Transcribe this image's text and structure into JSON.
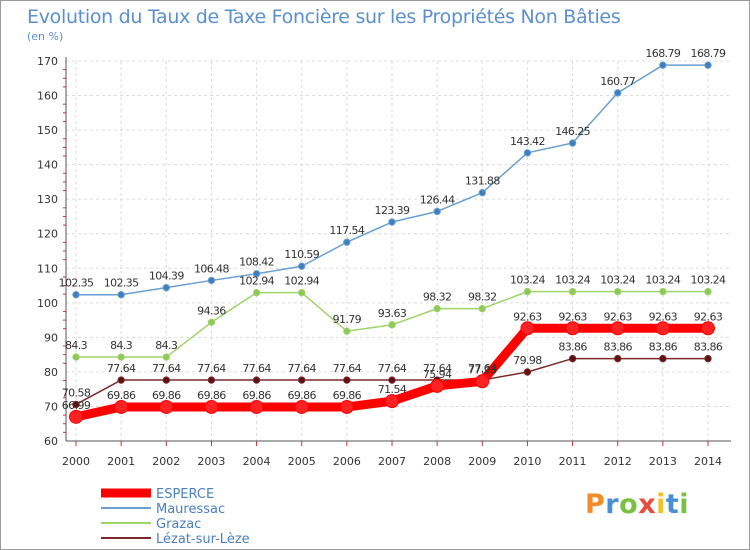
{
  "chart_data": {
    "type": "line",
    "title": "Evolution du Taux de Taxe Foncière sur les Propriétés Non Bâties",
    "subtitle": "(en %)",
    "x": [
      "2000",
      "2001",
      "2002",
      "2003",
      "2004",
      "2005",
      "2006",
      "2007",
      "2008",
      "2009",
      "2010",
      "2011",
      "2012",
      "2013",
      "2014"
    ],
    "ylim": [
      60,
      170
    ],
    "yticks": [
      60,
      70,
      80,
      90,
      100,
      110,
      120,
      130,
      140,
      150,
      160,
      170
    ],
    "grid": true,
    "legend_position": "bottom-left",
    "series": [
      {
        "name": "ESPERCE",
        "color": "#ff0000",
        "values": [
          66.99,
          69.86,
          69.86,
          69.86,
          69.86,
          69.86,
          69.86,
          71.54,
          75.94,
          77.28,
          92.63,
          92.63,
          92.63,
          92.63,
          92.63
        ],
        "labels": [
          "66.99",
          "69.86",
          "69.86",
          "69.86",
          "69.86",
          "69.86",
          "69.86",
          "71.54",
          "75.94",
          "77.28",
          "92.63",
          "92.63",
          "92.63",
          "92.63",
          "92.63"
        ]
      },
      {
        "name": "Mauressac",
        "color": "#6a9fd0",
        "values": [
          102.35,
          102.35,
          104.39,
          106.48,
          108.42,
          110.59,
          117.54,
          123.39,
          126.44,
          131.88,
          143.42,
          146.25,
          160.77,
          168.79,
          168.79
        ],
        "labels": [
          "102.35",
          "102.35",
          "104.39",
          "106.48",
          "108.42",
          "110.59",
          "117.54",
          "123.39",
          "126.44",
          "131.88",
          "143.42",
          "146.25",
          "160.77",
          "168.79",
          "168.79"
        ]
      },
      {
        "name": "Grazac",
        "color": "#9ed46a",
        "values": [
          84.3,
          84.3,
          84.3,
          94.36,
          102.94,
          102.94,
          91.79,
          93.63,
          98.32,
          98.32,
          103.24,
          103.24,
          103.24,
          103.24,
          103.24
        ],
        "labels": [
          "84.3",
          "84.3",
          "84.3",
          "94.36",
          "102.94",
          "102.94",
          "91.79",
          "93.63",
          "98.32",
          "98.32",
          "103.24",
          "103.24",
          "103.24",
          "103.24",
          "103.24"
        ]
      },
      {
        "name": "Lézat-sur-Lèze",
        "color": "#7a2a2a",
        "values": [
          70.58,
          77.64,
          77.64,
          77.64,
          77.64,
          77.64,
          77.64,
          77.64,
          77.64,
          77.64,
          79.98,
          83.86,
          83.86,
          83.86,
          83.86
        ],
        "labels": [
          "70.58",
          "77.64",
          "77.64",
          "77.64",
          "77.64",
          "77.64",
          "77.64",
          "77.64",
          "77.64",
          "77.64",
          "79.98",
          "83.86",
          "83.86",
          "83.86",
          "83.86"
        ]
      }
    ]
  },
  "logo": {
    "text": "Proxiti",
    "colors": [
      "#f28c28",
      "#4a8fd6",
      "#7ac043",
      "#e84c3d",
      "#f2c12e",
      "#4a8fd6",
      "#7ac043"
    ]
  }
}
